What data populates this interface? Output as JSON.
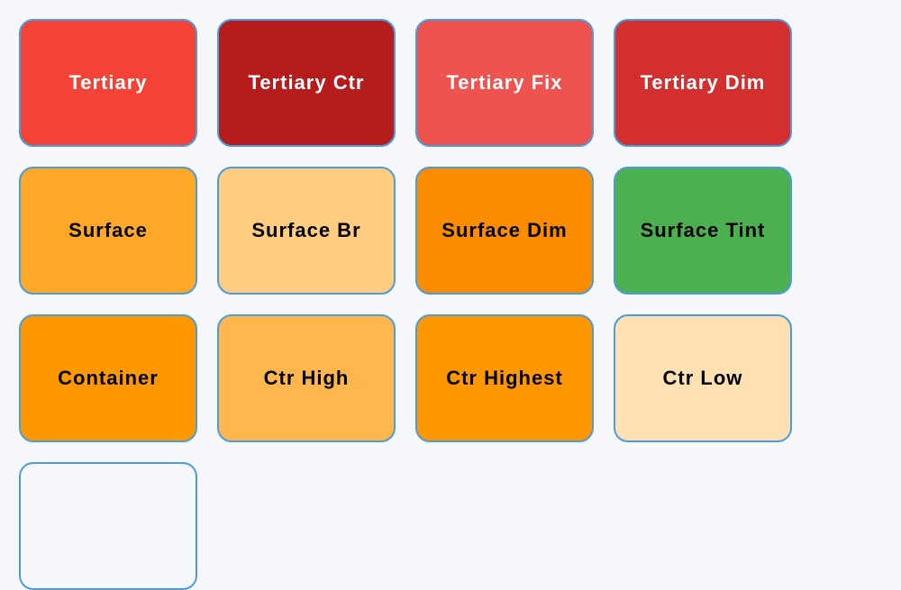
{
  "swatches": [
    {
      "label": "Tertiary",
      "color": "#f44336",
      "text_color": "#ffffff"
    },
    {
      "label": "Tertiary Ctr",
      "color": "#b71c1c",
      "text_color": "#ffffff"
    },
    {
      "label": "Tertiary Fix",
      "color": "#ef5350",
      "text_color": "#ffffff"
    },
    {
      "label": "Tertiary Dim",
      "color": "#d32f2f",
      "text_color": "#ffffff"
    },
    {
      "label": "Surface",
      "color": "#ffa726",
      "text_color": "#000000"
    },
    {
      "label": "Surface Br",
      "color": "#ffcc80",
      "text_color": "#000000"
    },
    {
      "label": "Surface Dim",
      "color": "#fb8c00",
      "text_color": "#000000"
    },
    {
      "label": "Surface Tint",
      "color": "#4caf50",
      "text_color": "#000000"
    },
    {
      "label": "Container",
      "color": "#ff9800",
      "text_color": "#000000"
    },
    {
      "label": "Ctr High",
      "color": "#ffb74d",
      "text_color": "#000000"
    },
    {
      "label": "Ctr Highest",
      "color": "#ff9800",
      "text_color": "#000000"
    },
    {
      "label": "Ctr Low",
      "color": "#ffe0b2",
      "text_color": "#000000"
    }
  ],
  "partial_swatch": {
    "label": "",
    "color": "#f5f7fb"
  },
  "border_color": "#4a9be0",
  "background": "#f5f7fb"
}
